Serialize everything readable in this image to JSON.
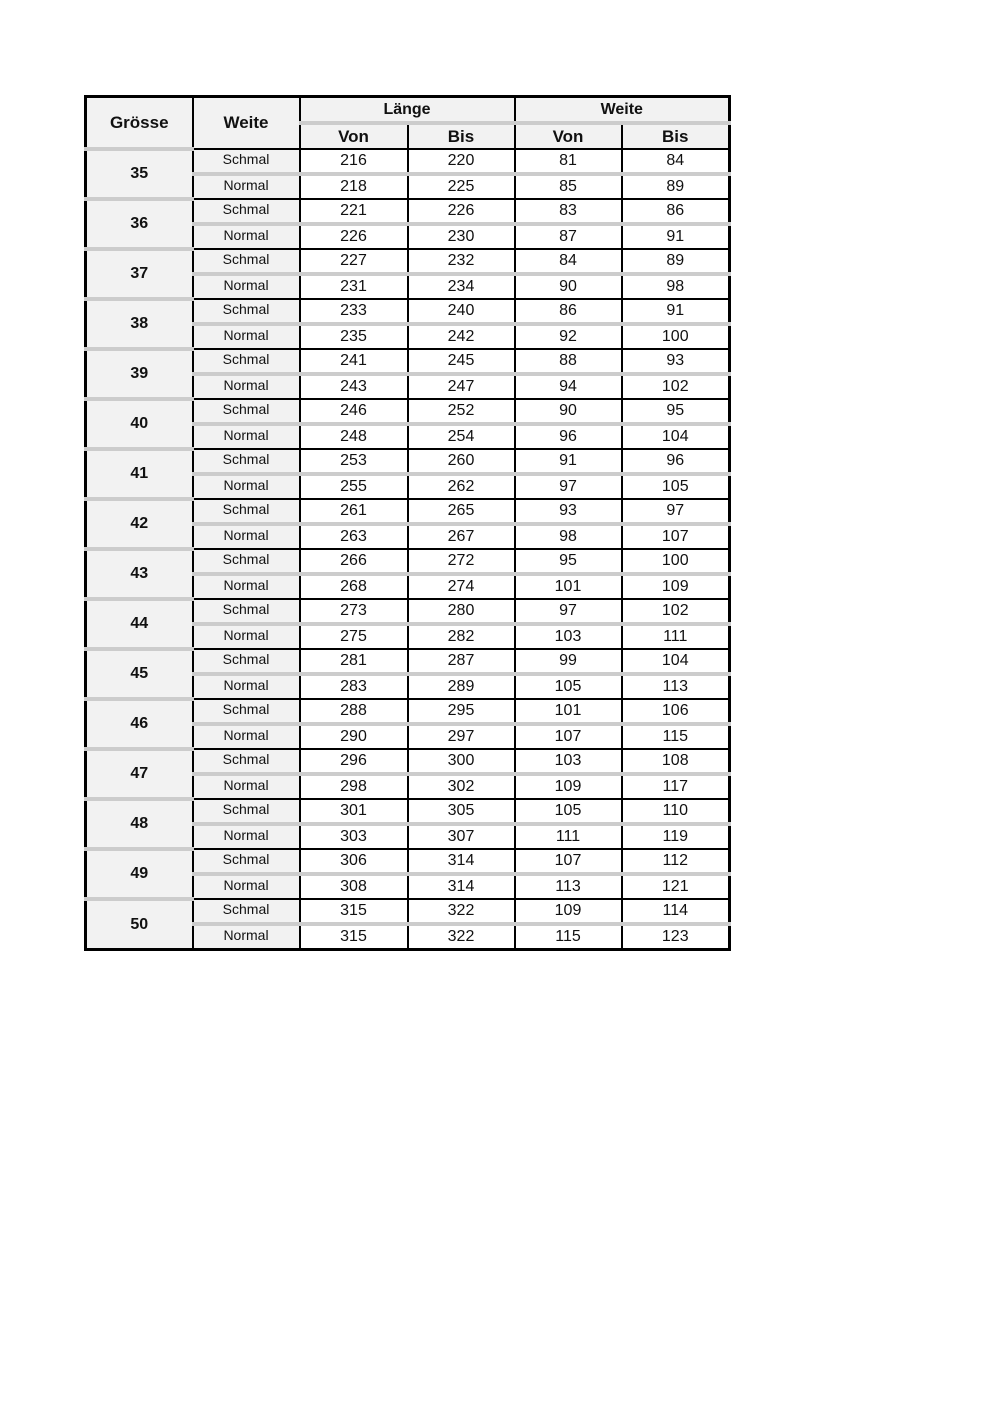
{
  "header": {
    "size": "Grösse",
    "width": "Weite",
    "length_group": "Länge",
    "width_group": "Weite",
    "from": "Von",
    "to": "Bis"
  },
  "rows": [
    {
      "size": "35",
      "variants": [
        {
          "name": "Schmal",
          "len_from": "216",
          "len_to": "220",
          "w_from": "81",
          "w_to": "84"
        },
        {
          "name": "Normal",
          "len_from": "218",
          "len_to": "225",
          "w_from": "85",
          "w_to": "89"
        }
      ]
    },
    {
      "size": "36",
      "variants": [
        {
          "name": "Schmal",
          "len_from": "221",
          "len_to": "226",
          "w_from": "83",
          "w_to": "86"
        },
        {
          "name": "Normal",
          "len_from": "226",
          "len_to": "230",
          "w_from": "87",
          "w_to": "91"
        }
      ]
    },
    {
      "size": "37",
      "variants": [
        {
          "name": "Schmal",
          "len_from": "227",
          "len_to": "232",
          "w_from": "84",
          "w_to": "89"
        },
        {
          "name": "Normal",
          "len_from": "231",
          "len_to": "234",
          "w_from": "90",
          "w_to": "98"
        }
      ]
    },
    {
      "size": "38",
      "variants": [
        {
          "name": "Schmal",
          "len_from": "233",
          "len_to": "240",
          "w_from": "86",
          "w_to": "91"
        },
        {
          "name": "Normal",
          "len_from": "235",
          "len_to": "242",
          "w_from": "92",
          "w_to": "100"
        }
      ]
    },
    {
      "size": "39",
      "variants": [
        {
          "name": "Schmal",
          "len_from": "241",
          "len_to": "245",
          "w_from": "88",
          "w_to": "93"
        },
        {
          "name": "Normal",
          "len_from": "243",
          "len_to": "247",
          "w_from": "94",
          "w_to": "102"
        }
      ]
    },
    {
      "size": "40",
      "variants": [
        {
          "name": "Schmal",
          "len_from": "246",
          "len_to": "252",
          "w_from": "90",
          "w_to": "95"
        },
        {
          "name": "Normal",
          "len_from": "248",
          "len_to": "254",
          "w_from": "96",
          "w_to": "104"
        }
      ]
    },
    {
      "size": "41",
      "variants": [
        {
          "name": "Schmal",
          "len_from": "253",
          "len_to": "260",
          "w_from": "91",
          "w_to": "96"
        },
        {
          "name": "Normal",
          "len_from": "255",
          "len_to": "262",
          "w_from": "97",
          "w_to": "105"
        }
      ]
    },
    {
      "size": "42",
      "variants": [
        {
          "name": "Schmal",
          "len_from": "261",
          "len_to": "265",
          "w_from": "93",
          "w_to": "97"
        },
        {
          "name": "Normal",
          "len_from": "263",
          "len_to": "267",
          "w_from": "98",
          "w_to": "107"
        }
      ]
    },
    {
      "size": "43",
      "variants": [
        {
          "name": "Schmal",
          "len_from": "266",
          "len_to": "272",
          "w_from": "95",
          "w_to": "100"
        },
        {
          "name": "Normal",
          "len_from": "268",
          "len_to": "274",
          "w_from": "101",
          "w_to": "109"
        }
      ]
    },
    {
      "size": "44",
      "variants": [
        {
          "name": "Schmal",
          "len_from": "273",
          "len_to": "280",
          "w_from": "97",
          "w_to": "102"
        },
        {
          "name": "Normal",
          "len_from": "275",
          "len_to": "282",
          "w_from": "103",
          "w_to": "111"
        }
      ]
    },
    {
      "size": "45",
      "variants": [
        {
          "name": "Schmal",
          "len_from": "281",
          "len_to": "287",
          "w_from": "99",
          "w_to": "104"
        },
        {
          "name": "Normal",
          "len_from": "283",
          "len_to": "289",
          "w_from": "105",
          "w_to": "113"
        }
      ]
    },
    {
      "size": "46",
      "variants": [
        {
          "name": "Schmal",
          "len_from": "288",
          "len_to": "295",
          "w_from": "101",
          "w_to": "106"
        },
        {
          "name": "Normal",
          "len_from": "290",
          "len_to": "297",
          "w_from": "107",
          "w_to": "115"
        }
      ]
    },
    {
      "size": "47",
      "variants": [
        {
          "name": "Schmal",
          "len_from": "296",
          "len_to": "300",
          "w_from": "103",
          "w_to": "108"
        },
        {
          "name": "Normal",
          "len_from": "298",
          "len_to": "302",
          "w_from": "109",
          "w_to": "117"
        }
      ]
    },
    {
      "size": "48",
      "variants": [
        {
          "name": "Schmal",
          "len_from": "301",
          "len_to": "305",
          "w_from": "105",
          "w_to": "110"
        },
        {
          "name": "Normal",
          "len_from": "303",
          "len_to": "307",
          "w_from": "111",
          "w_to": "119"
        }
      ]
    },
    {
      "size": "49",
      "variants": [
        {
          "name": "Schmal",
          "len_from": "306",
          "len_to": "314",
          "w_from": "107",
          "w_to": "112"
        },
        {
          "name": "Normal",
          "len_from": "308",
          "len_to": "314",
          "w_from": "113",
          "w_to": "121"
        }
      ]
    },
    {
      "size": "50",
      "variants": [
        {
          "name": "Schmal",
          "len_from": "315",
          "len_to": "322",
          "w_from": "109",
          "w_to": "114"
        },
        {
          "name": "Normal",
          "len_from": "315",
          "len_to": "322",
          "w_from": "115",
          "w_to": "123"
        }
      ]
    }
  ]
}
